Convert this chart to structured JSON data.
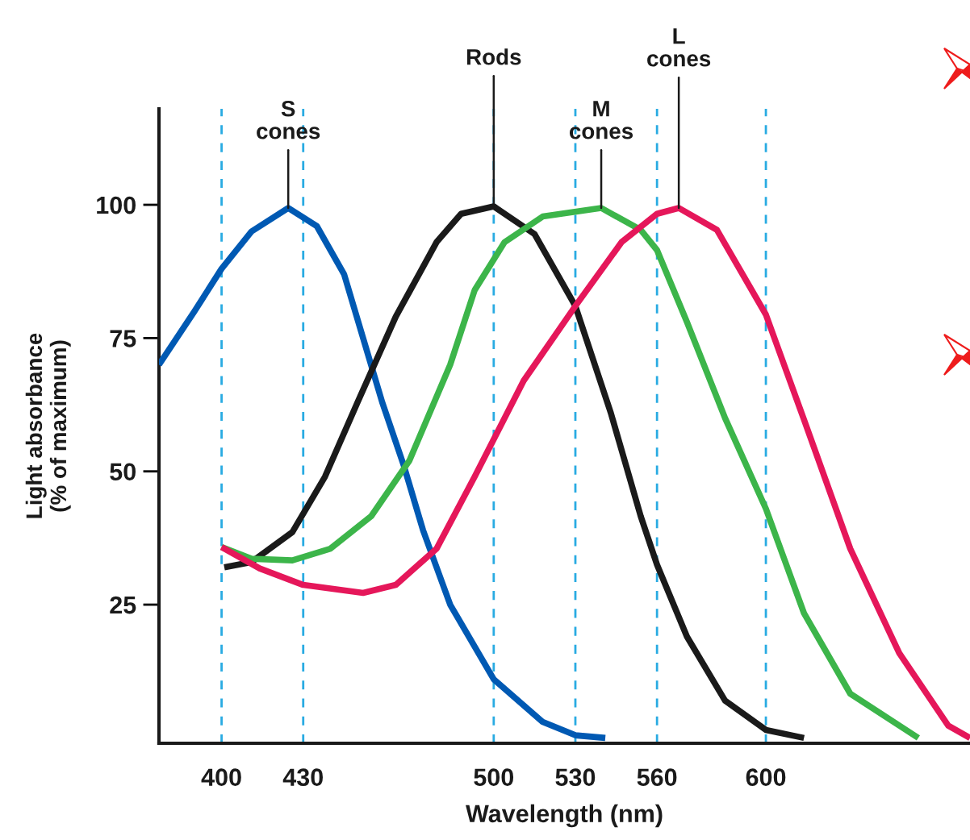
{
  "chart_data": {
    "type": "line",
    "xlabel": "Wavelength (nm)",
    "ylabel": "Light absorbance\n(% of maximum)",
    "xlim": [
      377,
      675
    ],
    "xticks": [
      400,
      430,
      500,
      530,
      560,
      600
    ],
    "ylim": [
      -1,
      118
    ],
    "yticks": [
      25,
      50,
      75,
      100
    ],
    "grid": false,
    "legend": false,
    "marker": "none",
    "line_style": "solid",
    "series": [
      {
        "color": "#0059b3",
        "x": [
          377,
          390,
          400,
          411,
          424.5,
          435,
          445,
          452,
          459,
          467,
          474,
          484,
          500,
          518,
          530,
          541
        ],
        "values": [
          70,
          80,
          88,
          95,
          99.4,
          96,
          87,
          75,
          63,
          51,
          39,
          25,
          11,
          3,
          0.5,
          0
        ]
      },
      {
        "color": "#1a1a1a",
        "x": [
          401,
          411,
          426,
          438,
          450,
          464,
          479,
          488,
          500,
          515,
          530,
          543,
          554,
          560,
          571,
          585,
          600,
          614
        ],
        "values": [
          32,
          33,
          38.6,
          49,
          63,
          79,
          93,
          98.3,
          99.7,
          94.5,
          81,
          61,
          41.6,
          32.5,
          19,
          7,
          1.5,
          0
        ]
      },
      {
        "color": "#3cb54a",
        "x": [
          400,
          411,
          426,
          440,
          455,
          469,
          484,
          493,
          504,
          518,
          539.5,
          554,
          560,
          571,
          585,
          600,
          614,
          631,
          656
        ],
        "values": [
          35.8,
          33.6,
          33.3,
          35.5,
          41.6,
          52,
          70,
          84,
          93,
          97.8,
          99.4,
          95.3,
          91.5,
          78,
          60,
          43,
          23.4,
          8.3,
          0
        ]
      },
      {
        "color": "#e5175a",
        "x": [
          400,
          414,
          430,
          452,
          464,
          479,
          493,
          511,
          530,
          547,
          560,
          568,
          582,
          600,
          614,
          631,
          649,
          667,
          675
        ],
        "values": [
          35.8,
          31.8,
          28.7,
          27.2,
          28.7,
          35.5,
          49,
          67,
          81,
          93,
          98.3,
          99.4,
          95.3,
          79.4,
          59.7,
          35.5,
          15.9,
          2.3,
          0
        ]
      }
    ],
    "annotations": [
      {
        "text": "S\ncones",
        "x": 424.5,
        "y": 99.4
      },
      {
        "text": "Rods",
        "x": 500,
        "y": 99.7
      },
      {
        "text": "M\ncones",
        "x": 539.5,
        "y": 99.4
      },
      {
        "text": "L\ncones",
        "x": 568,
        "y": 99.4
      }
    ],
    "ref_lines": [
      {
        "axis": "x",
        "value": 400,
        "color": "#29abe2",
        "line_style": "dashed"
      },
      {
        "axis": "x",
        "value": 430,
        "color": "#29abe2",
        "line_style": "dashed"
      },
      {
        "axis": "x",
        "value": 500,
        "color": "#29abe2",
        "line_style": "dashed"
      },
      {
        "axis": "x",
        "value": 530,
        "color": "#29abe2",
        "line_style": "dashed"
      },
      {
        "axis": "x",
        "value": 560,
        "color": "#29abe2",
        "line_style": "dashed"
      },
      {
        "axis": "x",
        "value": 600,
        "color": "#29abe2",
        "line_style": "dashed"
      }
    ]
  }
}
